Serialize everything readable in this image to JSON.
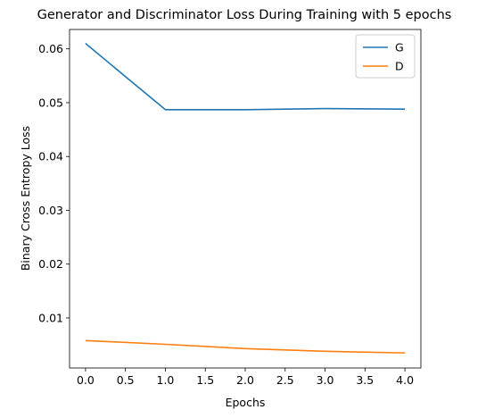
{
  "chart_data": {
    "type": "line",
    "title": "Generator and Discriminator Loss During Training with 5 epochs",
    "xlabel": "Epochs",
    "ylabel": "Binary Cross Entropy Loss",
    "x": [
      0,
      1,
      2,
      3,
      4
    ],
    "xlim": [
      -0.2,
      4.2
    ],
    "ylim": [
      0.0007,
      0.0636
    ],
    "xticks": [
      0.0,
      0.5,
      1.0,
      1.5,
      2.0,
      2.5,
      3.0,
      3.5,
      4.0
    ],
    "xtick_labels": [
      "0.0",
      "0.5",
      "1.0",
      "1.5",
      "2.0",
      "2.5",
      "3.0",
      "3.5",
      "4.0"
    ],
    "yticks": [
      0.01,
      0.02,
      0.03,
      0.04,
      0.05,
      0.06
    ],
    "ytick_labels": [
      "0.01",
      "0.02",
      "0.03",
      "0.04",
      "0.05",
      "0.06"
    ],
    "grid": false,
    "legend_position": "top-right",
    "series": [
      {
        "name": "G",
        "color": "#1f77b4",
        "values": [
          0.061,
          0.0487,
          0.0487,
          0.0489,
          0.0488
        ]
      },
      {
        "name": "D",
        "color": "#ff7f0e",
        "values": [
          0.0058,
          0.0051,
          0.0043,
          0.0038,
          0.0035
        ]
      }
    ]
  }
}
